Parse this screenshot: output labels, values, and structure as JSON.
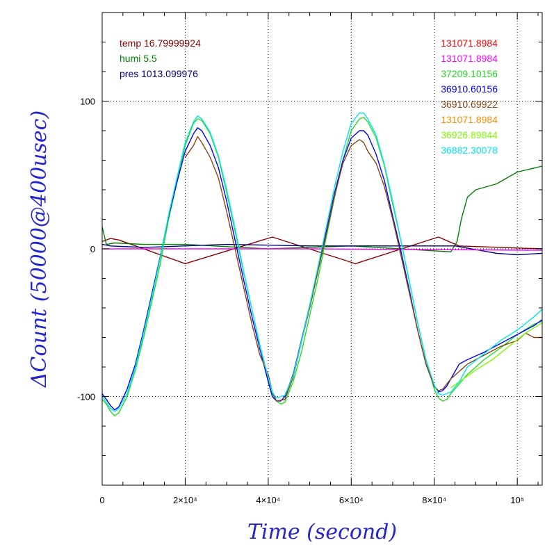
{
  "chart_data": {
    "type": "line",
    "title": "",
    "xlabel": "Time (second)",
    "ylabel": "ΔCount (50000@400usec)",
    "xlim": [
      0,
      106000
    ],
    "ylim": [
      -160,
      160
    ],
    "grid": true,
    "x_ticks": [
      {
        "value": 0,
        "label": "0"
      },
      {
        "value": 20000,
        "label": "2×10⁴"
      },
      {
        "value": 40000,
        "label": "4×10⁴"
      },
      {
        "value": 60000,
        "label": "6×10⁴"
      },
      {
        "value": 80000,
        "label": "8×10⁴"
      },
      {
        "value": 100000,
        "label": "10⁵"
      }
    ],
    "y_ticks": [
      {
        "value": 100,
        "label": "100"
      },
      {
        "value": 0,
        "label": "0"
      },
      {
        "value": -100,
        "label": "-100"
      }
    ],
    "legend_left": {
      "placement": "top-left",
      "entries": [
        {
          "label": "temp 16.79999924",
          "color": "#8b0000"
        },
        {
          "label": "humi 5.5",
          "color": "#008000"
        },
        {
          "label": "pres 1013.099976",
          "color": "#000080"
        }
      ]
    },
    "legend_right": {
      "placement": "top-right",
      "entries": [
        {
          "label": "131071.8984",
          "color": "#ff0000"
        },
        {
          "label": "131071.8984",
          "color": "#ff00ff"
        },
        {
          "label": "37209.10156",
          "color": "#22dd22"
        },
        {
          "label": "36910.60156",
          "color": "#0000ff"
        },
        {
          "label": "36910.69922",
          "color": "#8b4513"
        },
        {
          "label": "131071.8984",
          "color": "#ff8c00"
        },
        {
          "label": "36926.89844",
          "color": "#7cfc00"
        },
        {
          "label": "36882.30078",
          "color": "#00e5ee"
        }
      ]
    },
    "series": [
      {
        "color": "#8b0000",
        "x": [
          0,
          2000,
          4000,
          20000,
          41000,
          61000,
          81000,
          86000,
          106000
        ],
        "y": [
          5,
          7,
          6,
          -10,
          8,
          -10,
          8,
          2,
          0
        ]
      },
      {
        "color": "#008000",
        "x": [
          0,
          1000,
          3000,
          10000,
          20000,
          40000,
          60000,
          84000,
          85500,
          86500,
          88000,
          90000,
          95000,
          100000,
          106000
        ],
        "y": [
          15,
          3,
          4,
          3,
          3,
          0,
          2,
          -2,
          5,
          20,
          35,
          40,
          44,
          52,
          56
        ]
      },
      {
        "color": "#000080",
        "x": [
          0,
          2000,
          10000,
          30000,
          50000,
          70000,
          85000,
          95000,
          100000,
          106000
        ],
        "y": [
          3,
          2,
          1,
          3,
          2,
          2,
          2,
          -3,
          -4,
          -3
        ]
      },
      {
        "color": "#ff00ff",
        "x": [
          0,
          50000,
          106000
        ],
        "y": [
          0,
          0,
          -1
        ]
      },
      {
        "color": "#22dd22",
        "x": [
          0,
          1000,
          2000,
          3000,
          4000,
          6000,
          8000,
          10000,
          12000,
          14000,
          16000,
          18000,
          20000,
          22000,
          23000,
          24000,
          26000,
          28000,
          30000,
          32000,
          34000,
          36000,
          38000,
          40000,
          41000,
          42000,
          43000,
          44000,
          46000,
          48000,
          50000,
          52000,
          54000,
          56000,
          58000,
          60000,
          62000,
          63000,
          64000,
          66000,
          68000,
          70000,
          72000,
          74000,
          76000,
          78000,
          80000,
          81000,
          82000,
          83000,
          84000,
          88000,
          92000,
          96000,
          100000,
          104000,
          106000
        ],
        "y": [
          -102,
          -105,
          -110,
          -113,
          -111,
          -100,
          -82,
          -60,
          -35,
          -10,
          20,
          45,
          70,
          85,
          88,
          87,
          78,
          62,
          38,
          12,
          -15,
          -40,
          -65,
          -88,
          -98,
          -103,
          -105,
          -104,
          -90,
          -70,
          -45,
          -20,
          8,
          35,
          60,
          80,
          88,
          89,
          86,
          75,
          56,
          30,
          5,
          -22,
          -50,
          -75,
          -95,
          -101,
          -103,
          -102,
          -98,
          -85,
          -75,
          -67,
          -58,
          -51,
          -49
        ]
      },
      {
        "color": "#0000ff",
        "x": [
          0,
          1000,
          2000,
          3000,
          4000,
          6000,
          8000,
          10000,
          12000,
          14000,
          16000,
          18000,
          20000,
          22000,
          23000,
          24000,
          26000,
          28000,
          30000,
          32000,
          34000,
          36000,
          38000,
          40000,
          41000,
          42000,
          43000,
          44000,
          46000,
          48000,
          50000,
          52000,
          54000,
          56000,
          58000,
          60000,
          62000,
          63000,
          64000,
          66000,
          68000,
          70000,
          72000,
          74000,
          76000,
          78000,
          80000,
          81000,
          82000,
          83000,
          84000,
          86000,
          88000,
          92000,
          96000,
          100000,
          104000,
          106000
        ],
        "y": [
          -98,
          -102,
          -106,
          -109,
          -107,
          -95,
          -78,
          -55,
          -30,
          -5,
          22,
          45,
          66,
          78,
          82,
          80,
          70,
          55,
          32,
          6,
          -20,
          -45,
          -68,
          -90,
          -100,
          -103,
          -103,
          -100,
          -85,
          -62,
          -38,
          -13,
          12,
          38,
          60,
          75,
          80,
          80,
          77,
          64,
          46,
          22,
          -2,
          -28,
          -55,
          -78,
          -93,
          -97,
          -96,
          -93,
          -88,
          -78,
          -75,
          -70,
          -64,
          -58,
          -52,
          -48
        ]
      },
      {
        "color": "#8b4513",
        "x": [
          20000,
          22000,
          23000,
          24000,
          26000,
          28000,
          30000,
          32000,
          34000,
          36000,
          38000,
          40000,
          41000,
          42000,
          44000,
          46000,
          48000,
          50000,
          52000,
          54000,
          56000,
          58000,
          60000,
          62000,
          63000,
          64000,
          66000,
          68000,
          70000,
          72000,
          74000,
          76000,
          78000,
          80000,
          81000,
          82000,
          84000,
          88000,
          92000,
          96000,
          100000,
          102000,
          104000,
          106000
        ],
        "y": [
          62,
          70,
          76,
          72,
          62,
          48,
          25,
          0,
          -25,
          -50,
          -72,
          -85,
          -97,
          -103,
          -102,
          -87,
          -63,
          -40,
          -15,
          10,
          36,
          58,
          70,
          74,
          72,
          66,
          58,
          42,
          20,
          -5,
          -30,
          -55,
          -78,
          -93,
          -96,
          -95,
          -88,
          -78,
          -72,
          -66,
          -62,
          -57,
          -60,
          -60
        ]
      },
      {
        "color": "#7cfc00",
        "x": [
          84000,
          86000,
          90000,
          94000,
          98000,
          102000,
          106000
        ],
        "y": [
          -94,
          -90,
          -82,
          -75,
          -66,
          -57,
          -50
        ]
      },
      {
        "color": "#00e5ee",
        "x": [
          0,
          2000,
          3000,
          4000,
          6000,
          8000,
          10000,
          12000,
          14000,
          16000,
          18000,
          20000,
          22000,
          23000,
          24000,
          26000,
          28000,
          30000,
          32000,
          34000,
          36000,
          38000,
          40000,
          41000,
          42000,
          44000,
          46000,
          48000,
          50000,
          52000,
          54000,
          56000,
          58000,
          60000,
          62000,
          63000,
          64000,
          66000,
          68000,
          70000,
          72000,
          74000,
          76000,
          78000,
          80000,
          81000,
          82000,
          84000,
          86000,
          88000,
          92000,
          96000,
          100000,
          104000,
          106000
        ],
        "y": [
          -100,
          -108,
          -110,
          -108,
          -98,
          -80,
          -57,
          -32,
          -6,
          23,
          48,
          72,
          86,
          90,
          88,
          79,
          63,
          40,
          14,
          -14,
          -40,
          -66,
          -87,
          -97,
          -101,
          -99,
          -86,
          -63,
          -38,
          -12,
          15,
          42,
          66,
          85,
          92,
          92,
          88,
          77,
          57,
          32,
          5,
          -22,
          -50,
          -75,
          -92,
          -98,
          -99,
          -97,
          -90,
          -80,
          -71,
          -62,
          -55,
          -46,
          -41
        ]
      }
    ]
  }
}
